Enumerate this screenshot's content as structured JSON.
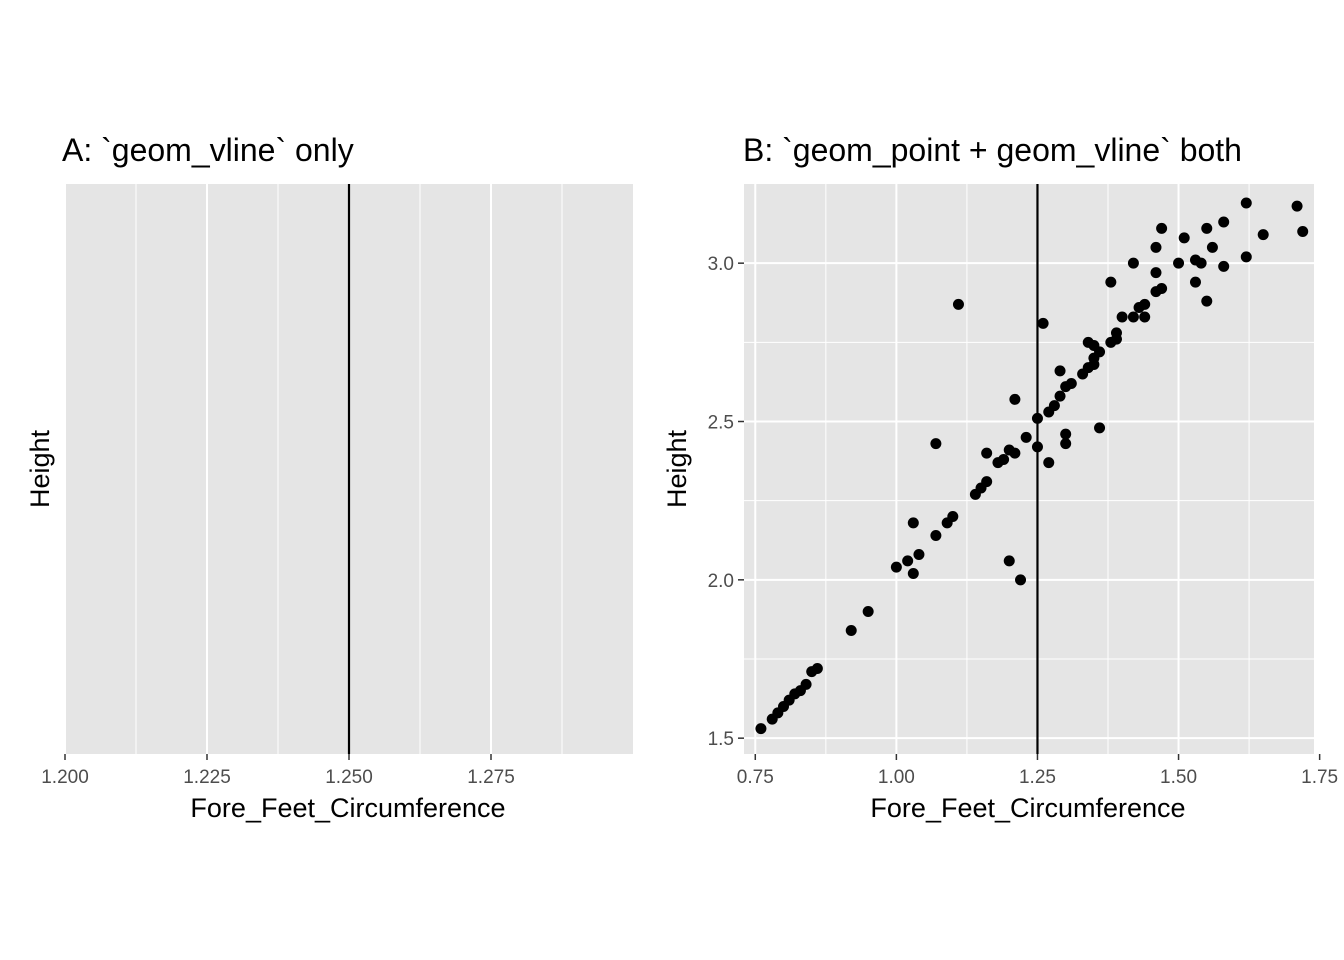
{
  "chart_data": [
    {
      "type": "line",
      "title": "A: `geom_vline` only",
      "xlabel": "Fore_Feet_Circumference",
      "ylabel": "Height",
      "xlim": [
        1.2,
        1.3
      ],
      "x_ticks": [
        "1.200",
        "1.225",
        "1.250",
        "1.275"
      ],
      "x_tick_values": [
        1.2,
        1.225,
        1.25,
        1.275
      ],
      "y_ticks": [],
      "vline": 1.25,
      "grid": true,
      "colors": {
        "panel": "#e5e5e5",
        "grid": "#ffffff",
        "line": "#000000"
      }
    },
    {
      "type": "scatter",
      "title": "B: `geom_point + geom_vline` both",
      "xlabel": "Fore_Feet_Circumference",
      "ylabel": "Height",
      "xlim": [
        0.73,
        1.74
      ],
      "ylim": [
        1.45,
        3.25
      ],
      "x_ticks": [
        "0.75",
        "1.00",
        "1.25",
        "1.50",
        "1.75"
      ],
      "x_tick_values": [
        0.75,
        1.0,
        1.25,
        1.5,
        1.75
      ],
      "y_ticks": [
        "1.5",
        "2.0",
        "2.5",
        "3.0"
      ],
      "y_tick_values": [
        1.5,
        2.0,
        2.5,
        3.0
      ],
      "vline": 1.25,
      "grid": true,
      "colors": {
        "panel": "#e5e5e5",
        "grid": "#ffffff",
        "point": "#000000",
        "line": "#000000"
      },
      "points": [
        [
          0.76,
          1.53
        ],
        [
          0.78,
          1.56
        ],
        [
          0.79,
          1.58
        ],
        [
          0.8,
          1.6
        ],
        [
          0.81,
          1.62
        ],
        [
          0.82,
          1.64
        ],
        [
          0.83,
          1.65
        ],
        [
          0.84,
          1.67
        ],
        [
          0.85,
          1.71
        ],
        [
          0.86,
          1.72
        ],
        [
          0.92,
          1.84
        ],
        [
          0.95,
          1.9
        ],
        [
          1.0,
          2.04
        ],
        [
          1.02,
          2.06
        ],
        [
          1.03,
          2.02
        ],
        [
          1.03,
          2.18
        ],
        [
          1.04,
          2.08
        ],
        [
          1.07,
          2.14
        ],
        [
          1.09,
          2.18
        ],
        [
          1.1,
          2.2
        ],
        [
          1.07,
          2.43
        ],
        [
          1.11,
          2.87
        ],
        [
          1.14,
          2.27
        ],
        [
          1.15,
          2.29
        ],
        [
          1.16,
          2.31
        ],
        [
          1.16,
          2.4
        ],
        [
          1.18,
          2.37
        ],
        [
          1.19,
          2.38
        ],
        [
          1.2,
          2.41
        ],
        [
          1.21,
          2.4
        ],
        [
          1.21,
          2.57
        ],
        [
          1.23,
          2.45
        ],
        [
          1.2,
          2.06
        ],
        [
          1.22,
          2.0
        ],
        [
          1.25,
          2.42
        ],
        [
          1.25,
          2.51
        ],
        [
          1.27,
          2.53
        ],
        [
          1.28,
          2.55
        ],
        [
          1.27,
          2.37
        ],
        [
          1.26,
          2.81
        ],
        [
          1.29,
          2.58
        ],
        [
          1.29,
          2.66
        ],
        [
          1.3,
          2.61
        ],
        [
          1.31,
          2.62
        ],
        [
          1.3,
          2.43
        ],
        [
          1.3,
          2.46
        ],
        [
          1.33,
          2.65
        ],
        [
          1.34,
          2.67
        ],
        [
          1.35,
          2.68
        ],
        [
          1.34,
          2.75
        ],
        [
          1.35,
          2.74
        ],
        [
          1.36,
          2.72
        ],
        [
          1.35,
          2.7
        ],
        [
          1.36,
          2.48
        ],
        [
          1.38,
          2.75
        ],
        [
          1.39,
          2.76
        ],
        [
          1.39,
          2.78
        ],
        [
          1.38,
          2.94
        ],
        [
          1.4,
          2.83
        ],
        [
          1.42,
          2.83
        ],
        [
          1.43,
          2.86
        ],
        [
          1.44,
          2.87
        ],
        [
          1.44,
          2.83
        ],
        [
          1.42,
          3.0
        ],
        [
          1.46,
          2.91
        ],
        [
          1.47,
          2.92
        ],
        [
          1.46,
          2.97
        ],
        [
          1.46,
          3.05
        ],
        [
          1.47,
          3.11
        ],
        [
          1.5,
          3.0
        ],
        [
          1.51,
          3.08
        ],
        [
          1.53,
          3.01
        ],
        [
          1.54,
          3.0
        ],
        [
          1.53,
          2.94
        ],
        [
          1.55,
          2.88
        ],
        [
          1.56,
          3.05
        ],
        [
          1.55,
          3.11
        ],
        [
          1.58,
          2.99
        ],
        [
          1.58,
          3.13
        ],
        [
          1.62,
          3.02
        ],
        [
          1.62,
          3.19
        ],
        [
          1.65,
          3.09
        ],
        [
          1.71,
          3.18
        ],
        [
          1.72,
          3.1
        ]
      ]
    }
  ]
}
